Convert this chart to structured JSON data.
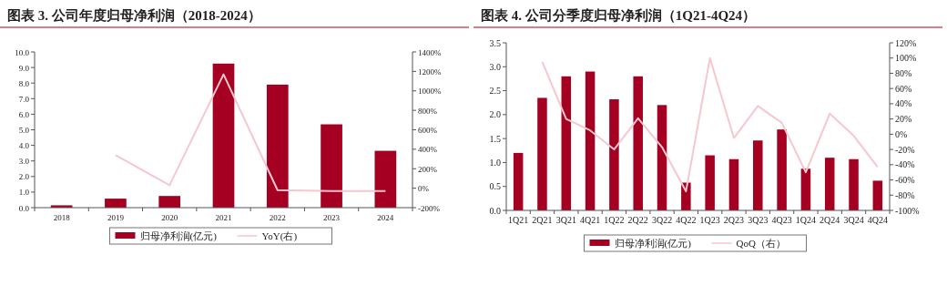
{
  "chart_data": [
    {
      "type": "bar",
      "title": "图表 3. 公司年度归母净利润（2018-2024）",
      "categories": [
        "2018",
        "2019",
        "2020",
        "2021",
        "2022",
        "2023",
        "2024"
      ],
      "series": [
        {
          "name": "归母净利润(亿元)",
          "color": "#a50021",
          "values": [
            0.15,
            0.58,
            0.75,
            9.25,
            7.9,
            5.35,
            3.65
          ]
        },
        {
          "name": "YoY(右)",
          "type": "line",
          "axis": "y2",
          "color": "#f7c6cf",
          "values": [
            null,
            340,
            30,
            1170,
            -20,
            -30,
            -30
          ]
        }
      ],
      "ylim": [
        0,
        10
      ],
      "yticks": [
        {
          "value": 0,
          "label": "0.0"
        },
        {
          "value": 1,
          "label": "1.0"
        },
        {
          "value": 2,
          "label": "2.0"
        },
        {
          "value": 3,
          "label": "3.0"
        },
        {
          "value": 4,
          "label": "4.0"
        },
        {
          "value": 5,
          "label": "5.0"
        },
        {
          "value": 6,
          "label": "6.0"
        },
        {
          "value": 7,
          "label": "7.0"
        },
        {
          "value": 8,
          "label": "8.0"
        },
        {
          "value": 9,
          "label": "9.0"
        },
        {
          "value": 10,
          "label": "10.0"
        }
      ],
      "y2lim": [
        -200,
        1400
      ],
      "y2ticks": [
        {
          "value": -200,
          "label": "-200%"
        },
        {
          "value": 0,
          "label": "0%"
        },
        {
          "value": 200,
          "label": "200%"
        },
        {
          "value": 400,
          "label": "400%"
        },
        {
          "value": 600,
          "label": "600%"
        },
        {
          "value": 800,
          "label": "800%"
        },
        {
          "value": 1000,
          "label": "1000%"
        },
        {
          "value": 1200,
          "label": "1200%"
        },
        {
          "value": 1400,
          "label": "1400%"
        }
      ],
      "legend": "bottom"
    },
    {
      "type": "bar",
      "title": "图表 4. 公司分季度归母净利润（1Q21-4Q24）",
      "categories": [
        "1Q21",
        "2Q21",
        "3Q21",
        "4Q21",
        "1Q22",
        "2Q22",
        "3Q22",
        "4Q22",
        "1Q23",
        "2Q23",
        "3Q23",
        "4Q23",
        "1Q24",
        "2Q24",
        "3Q24",
        "4Q24"
      ],
      "series": [
        {
          "name": "归母净利润(亿元)",
          "color": "#a50021",
          "values": [
            1.2,
            2.35,
            2.8,
            2.9,
            2.32,
            2.8,
            2.2,
            0.58,
            1.15,
            1.07,
            1.46,
            1.69,
            0.87,
            1.1,
            1.07,
            0.62
          ]
        },
        {
          "name": "QoQ（右）",
          "type": "line",
          "axis": "y2",
          "color": "#f7c6cf",
          "values": [
            null,
            95,
            20,
            5,
            -20,
            21,
            -17,
            -75,
            100,
            -5,
            37,
            15,
            -50,
            27,
            -2,
            -43
          ]
        }
      ],
      "ylim": [
        0,
        3.5
      ],
      "yticks": [
        {
          "value": 0,
          "label": "0.0"
        },
        {
          "value": 0.5,
          "label": "0.5"
        },
        {
          "value": 1,
          "label": "1.0"
        },
        {
          "value": 1.5,
          "label": "1.5"
        },
        {
          "value": 2,
          "label": "2.0"
        },
        {
          "value": 2.5,
          "label": "2.5"
        },
        {
          "value": 3,
          "label": "3.0"
        },
        {
          "value": 3.5,
          "label": "3.5"
        }
      ],
      "y2lim": [
        -100,
        120
      ],
      "y2ticks": [
        {
          "value": -100,
          "label": "-100%"
        },
        {
          "value": -80,
          "label": "-80%"
        },
        {
          "value": -60,
          "label": "-60%"
        },
        {
          "value": -40,
          "label": "-40%"
        },
        {
          "value": -20,
          "label": "-20%"
        },
        {
          "value": 0,
          "label": "0%"
        },
        {
          "value": 20,
          "label": "20%"
        },
        {
          "value": 40,
          "label": "40%"
        },
        {
          "value": 60,
          "label": "60%"
        },
        {
          "value": 80,
          "label": "80%"
        },
        {
          "value": 100,
          "label": "100%"
        },
        {
          "value": 120,
          "label": "120%"
        }
      ],
      "legend": "bottom"
    }
  ]
}
